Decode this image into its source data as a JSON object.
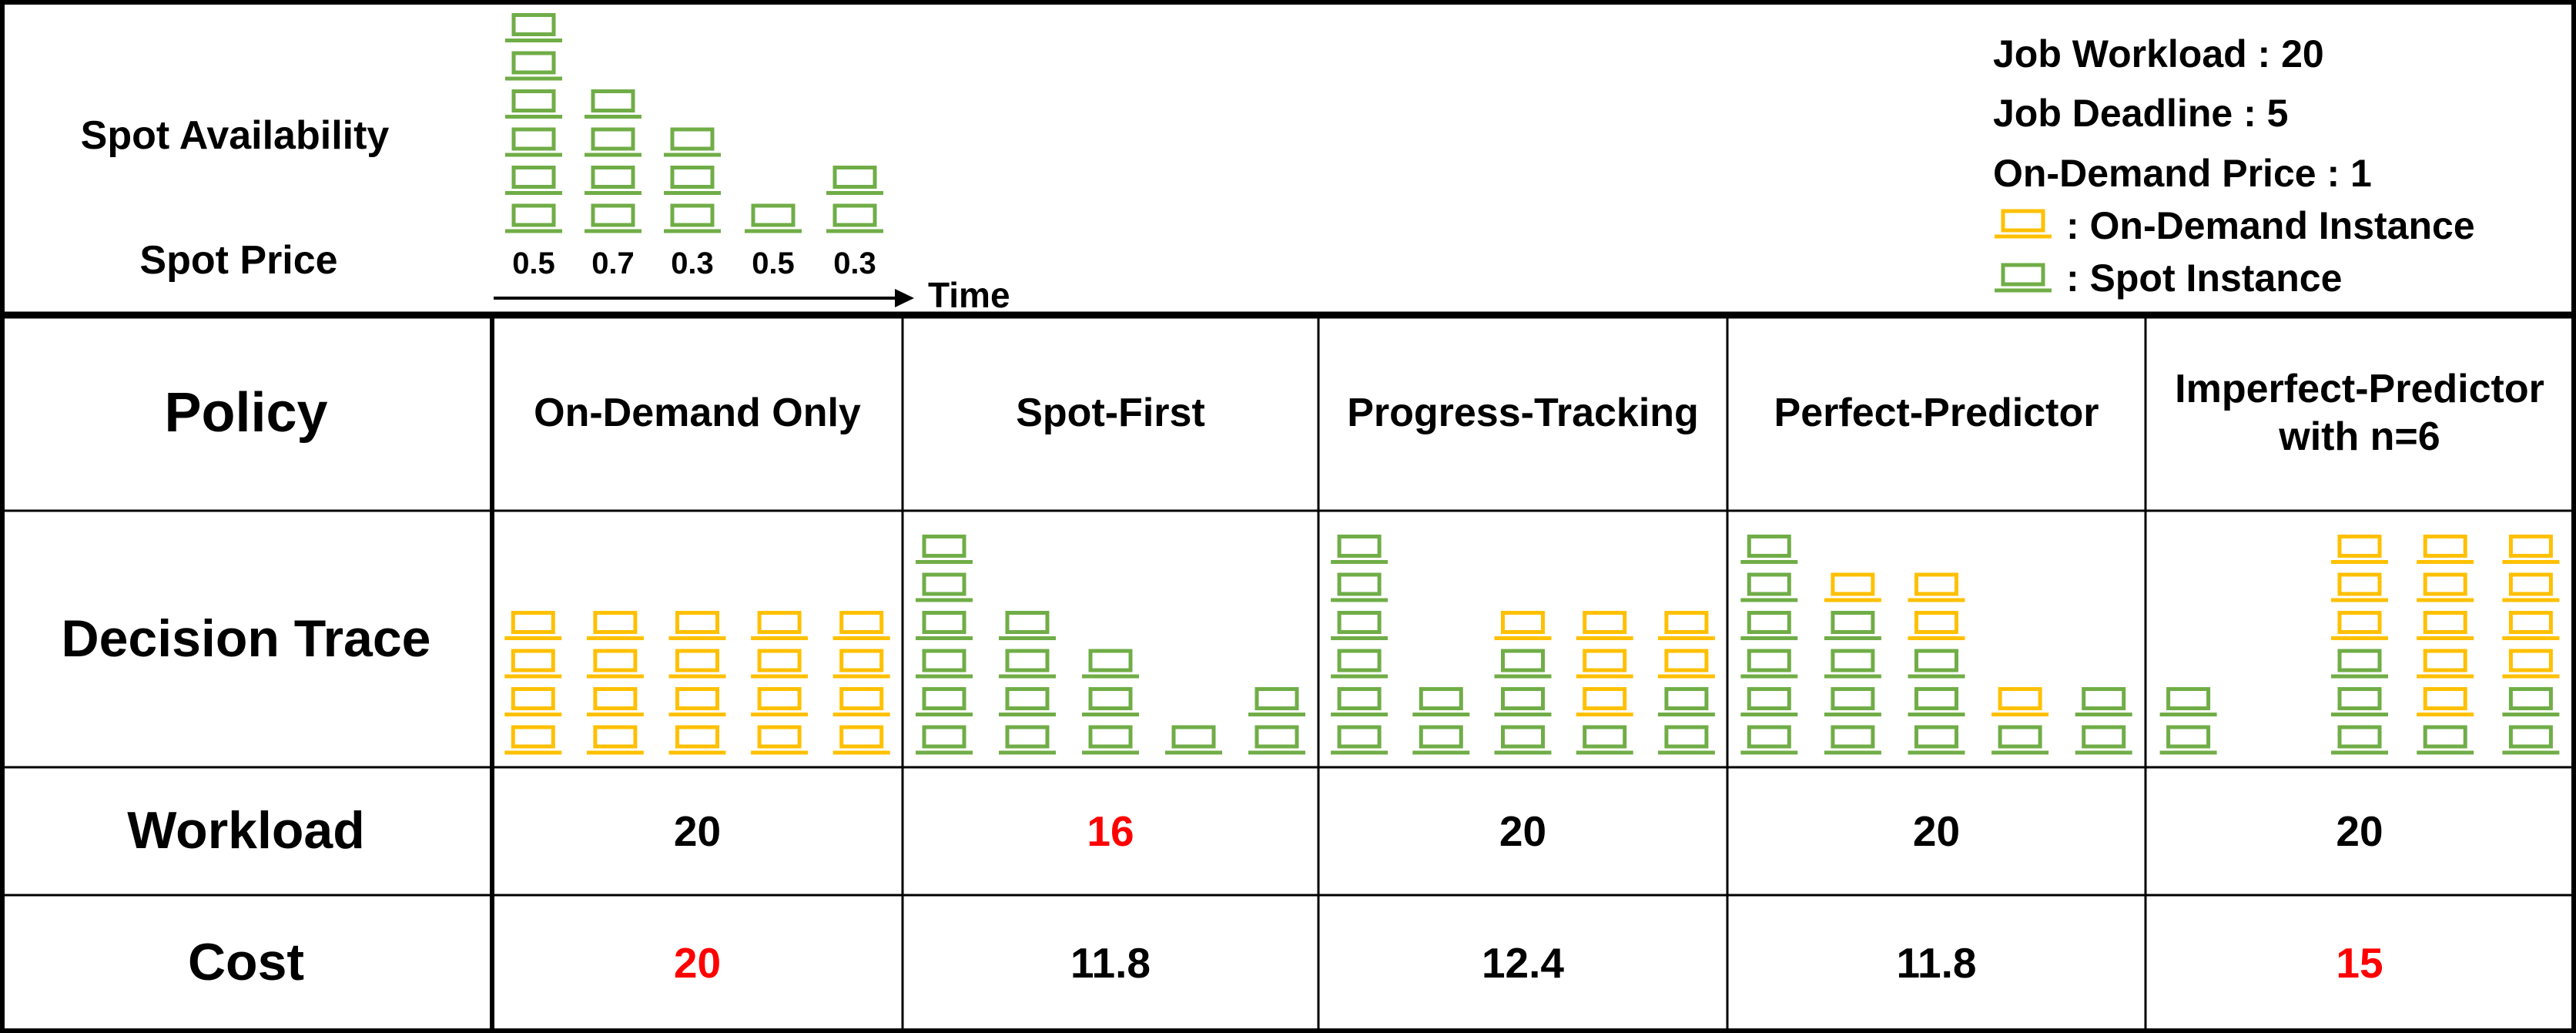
{
  "header": {
    "spot_availability_label": "Spot Availability",
    "spot_price_label": "Spot Price",
    "spot_availability": [
      6,
      4,
      3,
      1,
      2
    ],
    "spot_prices": [
      0.5,
      0.7,
      0.3,
      0.5,
      0.3
    ],
    "time_label": "Time",
    "legend": {
      "job_workload": "Job Workload : 20",
      "job_deadline": "Job Deadline : 5",
      "on_demand_price": "On-Demand Price : 1",
      "on_demand_instance": ": On-Demand Instance",
      "spot_instance": ": Spot Instance"
    },
    "spot_color": "#70ad47",
    "on_demand_color": "#ffc000"
  },
  "table": {
    "row_labels": {
      "policy": "Policy",
      "decision_trace": "Decision Trace",
      "workload": "Workload",
      "cost": "Cost"
    },
    "policies": [
      {
        "name": "On-Demand Only",
        "trace": [
          {
            "spot": 0,
            "on_demand": 4
          },
          {
            "spot": 0,
            "on_demand": 4
          },
          {
            "spot": 0,
            "on_demand": 4
          },
          {
            "spot": 0,
            "on_demand": 4
          },
          {
            "spot": 0,
            "on_demand": 4
          }
        ],
        "workload": 20,
        "workload_color": "#000000",
        "cost": 20,
        "cost_color": "#ff0000"
      },
      {
        "name": "Spot-First",
        "trace": [
          {
            "spot": 6,
            "on_demand": 0
          },
          {
            "spot": 4,
            "on_demand": 0
          },
          {
            "spot": 3,
            "on_demand": 0
          },
          {
            "spot": 1,
            "on_demand": 0
          },
          {
            "spot": 2,
            "on_demand": 0
          }
        ],
        "workload": 16,
        "workload_color": "#ff0000",
        "cost": 11.8,
        "cost_color": "#000000"
      },
      {
        "name": "Progress-Tracking",
        "trace": [
          {
            "spot": 6,
            "on_demand": 0
          },
          {
            "spot": 2,
            "on_demand": 0
          },
          {
            "spot": 3,
            "on_demand": 1
          },
          {
            "spot": 1,
            "on_demand": 3
          },
          {
            "spot": 2,
            "on_demand": 2
          }
        ],
        "workload": 20,
        "workload_color": "#000000",
        "cost": 12.4,
        "cost_color": "#000000"
      },
      {
        "name": "Perfect-Predictor",
        "trace": [
          {
            "spot": 6,
            "on_demand": 0
          },
          {
            "spot": 4,
            "on_demand": 1
          },
          {
            "spot": 3,
            "on_demand": 2
          },
          {
            "spot": 1,
            "on_demand": 1
          },
          {
            "spot": 2,
            "on_demand": 0
          }
        ],
        "workload": 20,
        "workload_color": "#000000",
        "cost": 11.8,
        "cost_color": "#000000"
      },
      {
        "name": "Imperfect-Predictor with n=6",
        "trace": [
          {
            "spot": 2,
            "on_demand": 0
          },
          {
            "spot": 0,
            "on_demand": 0
          },
          {
            "spot": 3,
            "on_demand": 3
          },
          {
            "spot": 1,
            "on_demand": 5
          },
          {
            "spot": 2,
            "on_demand": 4
          }
        ],
        "workload": 20,
        "workload_color": "#000000",
        "cost": 15,
        "cost_color": "#ff0000"
      }
    ]
  }
}
